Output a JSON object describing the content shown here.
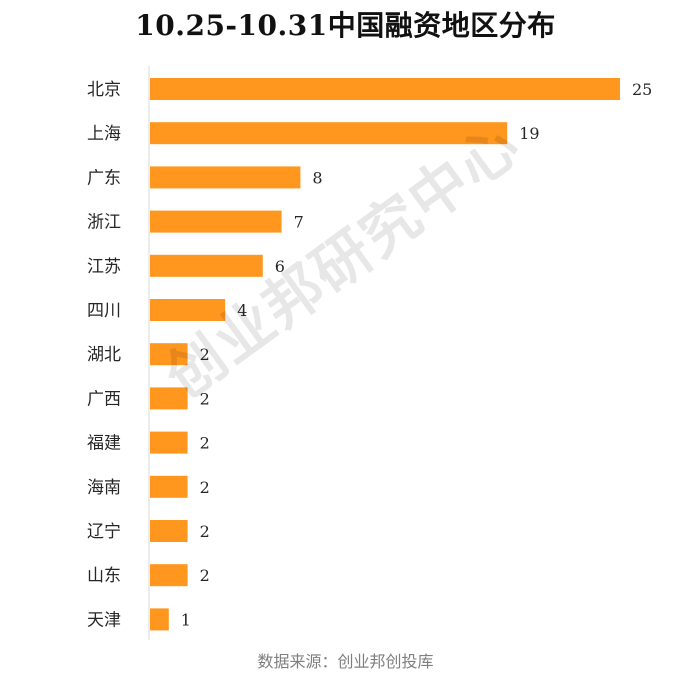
{
  "chart_data": {
    "type": "bar",
    "orientation": "horizontal",
    "title": "10.25-10.31中国融资地区分布",
    "xlabel": "",
    "ylabel": "",
    "categories": [
      "北京",
      "上海",
      "广东",
      "浙江",
      "江苏",
      "四川",
      "湖北",
      "广西",
      "福建",
      "海南",
      "辽宁",
      "山东",
      "天津"
    ],
    "values": [
      25,
      19,
      8,
      7,
      6,
      4,
      2,
      2,
      2,
      2,
      2,
      2,
      1
    ],
    "xlim": [
      0,
      25
    ],
    "grid": false,
    "legend": "none",
    "data_labels": true,
    "bar_color": "#FF961E"
  },
  "source": "数据来源：创业邦创投库",
  "watermark": "创业邦研究中心",
  "colors": {
    "bar": "#FF961E",
    "title": "#111111",
    "axis": "#d9d9d9",
    "label": "#262626",
    "source": "#7f7f7f"
  }
}
